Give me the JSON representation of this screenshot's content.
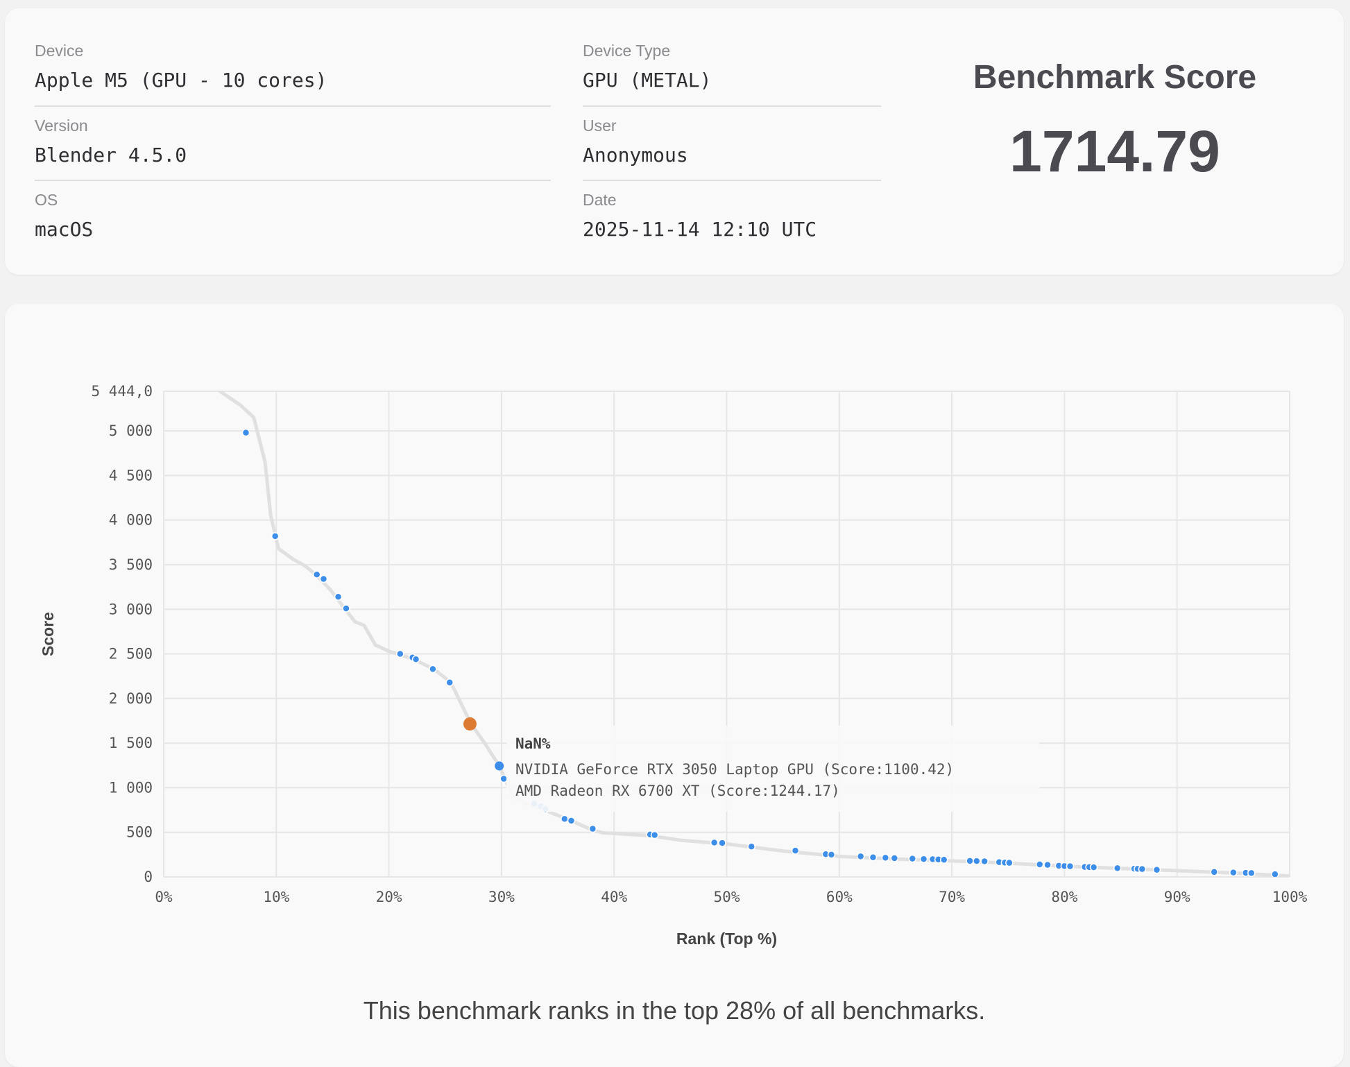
{
  "info": {
    "device_label": "Device",
    "device_value": "Apple M5 (GPU - 10 cores)",
    "version_label": "Version",
    "version_value": "Blender 4.5.0",
    "os_label": "OS",
    "os_value": "macOS",
    "device_type_label": "Device Type",
    "device_type_value": "GPU (METAL)",
    "user_label": "User",
    "user_value": "Anonymous",
    "date_label": "Date",
    "date_value": "2025-11-14 12:10 UTC"
  },
  "score": {
    "title": "Benchmark Score",
    "value": "1714.79"
  },
  "summary": "This benchmark ranks in the top 28% of all benchmarks.",
  "tooltip": {
    "title": "NaN%",
    "lines": [
      "NVIDIA GeForce RTX 3050 Laptop GPU (Score:1100.42)",
      "AMD Radeon RX 6700 XT (Score:1244.17)"
    ]
  },
  "colors": {
    "point": "#3d8ee8",
    "highlight": "#dd7a32",
    "curve": "#e0e0e0",
    "grid": "#e6e6e6"
  },
  "chart_data": {
    "type": "scatter",
    "xlabel": "Rank (Top %)",
    "ylabel": "Score",
    "xlim": [
      0,
      100
    ],
    "ylim": [
      0,
      5444
    ],
    "xticks": [
      "0%",
      "10%",
      "20%",
      "30%",
      "40%",
      "50%",
      "60%",
      "70%",
      "80%",
      "90%",
      "100%"
    ],
    "yticks": [
      {
        "value": 0,
        "label": "0"
      },
      {
        "value": 500,
        "label": "500"
      },
      {
        "value": 1000,
        "label": "1 000"
      },
      {
        "value": 1500,
        "label": "1 500"
      },
      {
        "value": 2000,
        "label": "2 000"
      },
      {
        "value": 2500,
        "label": "2 500"
      },
      {
        "value": 3000,
        "label": "3 000"
      },
      {
        "value": 3500,
        "label": "3 500"
      },
      {
        "value": 4000,
        "label": "4 000"
      },
      {
        "value": 4500,
        "label": "4 500"
      },
      {
        "value": 5000,
        "label": "5 000"
      },
      {
        "value": 5444,
        "label": "5 444,0"
      }
    ],
    "grid": true,
    "curve": [
      [
        5.0,
        5444
      ],
      [
        6.8,
        5290
      ],
      [
        8.0,
        5150
      ],
      [
        9.0,
        4650
      ],
      [
        9.5,
        4050
      ],
      [
        10.2,
        3680
      ],
      [
        11.5,
        3560
      ],
      [
        12.5,
        3490
      ],
      [
        13.5,
        3390
      ],
      [
        14.8,
        3220
      ],
      [
        16.0,
        3020
      ],
      [
        17.0,
        2860
      ],
      [
        17.8,
        2820
      ],
      [
        18.8,
        2600
      ],
      [
        20.0,
        2530
      ],
      [
        22.0,
        2450
      ],
      [
        24.0,
        2330
      ],
      [
        25.5,
        2180
      ],
      [
        26.5,
        1920
      ],
      [
        27.3,
        1715
      ],
      [
        28.5,
        1500
      ],
      [
        29.8,
        1244
      ],
      [
        30.3,
        1100
      ],
      [
        31.0,
        900
      ],
      [
        32.5,
        800
      ],
      [
        34.0,
        740
      ],
      [
        36.0,
        640
      ],
      [
        38.0,
        530
      ],
      [
        39.0,
        495
      ],
      [
        43.0,
        465
      ],
      [
        46.0,
        410
      ],
      [
        50.0,
        370
      ],
      [
        55.0,
        290
      ],
      [
        60.0,
        230
      ],
      [
        65.0,
        200
      ],
      [
        70.0,
        180
      ],
      [
        75.0,
        155
      ],
      [
        80.0,
        120
      ],
      [
        85.0,
        95
      ],
      [
        90.0,
        70
      ],
      [
        95.0,
        45
      ],
      [
        100.0,
        10
      ]
    ],
    "points": [
      [
        7.3,
        4980
      ],
      [
        9.9,
        3820
      ],
      [
        13.6,
        3390
      ],
      [
        14.2,
        3340
      ],
      [
        15.5,
        3140
      ],
      [
        16.2,
        3010
      ],
      [
        21.0,
        2500
      ],
      [
        22.1,
        2460
      ],
      [
        22.4,
        2440
      ],
      [
        23.9,
        2330
      ],
      [
        25.4,
        2180
      ],
      [
        29.8,
        1244
      ],
      [
        30.2,
        1100
      ],
      [
        32.9,
        820
      ],
      [
        33.5,
        790
      ],
      [
        33.9,
        760
      ],
      [
        35.6,
        650
      ],
      [
        36.2,
        630
      ],
      [
        38.1,
        540
      ],
      [
        43.2,
        475
      ],
      [
        43.6,
        470
      ],
      [
        48.9,
        385
      ],
      [
        49.6,
        380
      ],
      [
        52.2,
        340
      ],
      [
        56.1,
        295
      ],
      [
        58.8,
        255
      ],
      [
        59.3,
        250
      ],
      [
        61.9,
        230
      ],
      [
        63.0,
        220
      ],
      [
        64.1,
        215
      ],
      [
        64.9,
        210
      ],
      [
        66.5,
        205
      ],
      [
        67.5,
        200
      ],
      [
        68.3,
        198
      ],
      [
        68.8,
        195
      ],
      [
        69.3,
        192
      ],
      [
        71.6,
        180
      ],
      [
        72.2,
        178
      ],
      [
        72.9,
        175
      ],
      [
        74.2,
        165
      ],
      [
        74.7,
        160
      ],
      [
        75.1,
        158
      ],
      [
        77.8,
        140
      ],
      [
        78.5,
        135
      ],
      [
        79.5,
        125
      ],
      [
        80.0,
        122
      ],
      [
        80.5,
        120
      ],
      [
        81.8,
        112
      ],
      [
        82.2,
        110
      ],
      [
        82.6,
        108
      ],
      [
        84.7,
        98
      ],
      [
        86.2,
        92
      ],
      [
        86.5,
        90
      ],
      [
        86.9,
        88
      ],
      [
        88.2,
        80
      ],
      [
        93.3,
        55
      ],
      [
        95.0,
        50
      ],
      [
        96.1,
        46
      ],
      [
        96.6,
        44
      ],
      [
        98.7,
        30
      ]
    ],
    "highlight_point": [
      27.2,
      1715
    ],
    "hover_point": [
      29.8,
      1244
    ]
  }
}
